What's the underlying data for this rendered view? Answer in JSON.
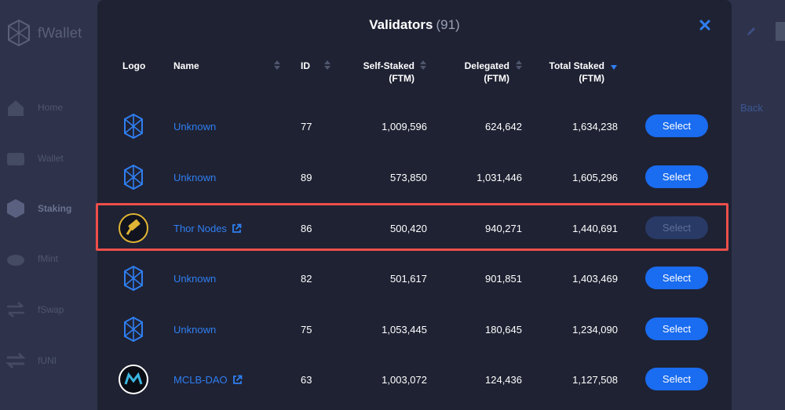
{
  "app": {
    "brand": "fWallet",
    "sidebar": [
      {
        "label": "Home",
        "icon": "home-icon"
      },
      {
        "label": "Wallet",
        "icon": "wallet-icon"
      },
      {
        "label": "Staking",
        "icon": "staking-icon"
      },
      {
        "label": "fMint",
        "icon": "fmint-icon"
      },
      {
        "label": "fSwap",
        "icon": "fswap-icon"
      },
      {
        "label": "fUNI",
        "icon": "funi-icon"
      }
    ],
    "back_label": "Back"
  },
  "modal": {
    "title": "Validators",
    "count": "(91)",
    "columns": {
      "logo": "Logo",
      "name": "Name",
      "id": "ID",
      "self_staked_1": "Self-Staked",
      "self_staked_2": "(FTM)",
      "delegated_1": "Delegated",
      "delegated_2": "(FTM)",
      "total_staked_1": "Total Staked",
      "total_staked_2": "(FTM)"
    },
    "rows": [
      {
        "logo": "fantom-logo-icon",
        "name": "Unknown",
        "external": false,
        "id": "77",
        "self_staked": "1,009,596",
        "delegated": "624,642",
        "total_staked": "1,634,238",
        "action": "Select",
        "disabled": false
      },
      {
        "logo": "fantom-logo-icon",
        "name": "Unknown",
        "external": false,
        "id": "89",
        "self_staked": "573,850",
        "delegated": "1,031,446",
        "total_staked": "1,605,296",
        "action": "Select",
        "disabled": false
      },
      {
        "logo": "thor-hammer-logo-icon",
        "name": "Thor Nodes",
        "external": true,
        "id": "86",
        "self_staked": "500,420",
        "delegated": "940,271",
        "total_staked": "1,440,691",
        "action": "Select",
        "disabled": true
      },
      {
        "logo": "fantom-logo-icon",
        "name": "Unknown",
        "external": false,
        "id": "82",
        "self_staked": "501,617",
        "delegated": "901,851",
        "total_staked": "1,403,469",
        "action": "Select",
        "disabled": false
      },
      {
        "logo": "fantom-logo-icon",
        "name": "Unknown",
        "external": false,
        "id": "75",
        "self_staked": "1,053,445",
        "delegated": "180,645",
        "total_staked": "1,234,090",
        "action": "Select",
        "disabled": false
      },
      {
        "logo": "mclb-logo-icon",
        "name": "MCLB-DAO",
        "external": true,
        "id": "63",
        "self_staked": "1,003,072",
        "delegated": "124,436",
        "total_staked": "1,127,508",
        "action": "Select",
        "disabled": false
      }
    ]
  },
  "colors": {
    "accent": "#1a6cf0",
    "link": "#2f7ff2",
    "highlight": "#ec4f4a",
    "modal_bg": "#1f2233"
  }
}
